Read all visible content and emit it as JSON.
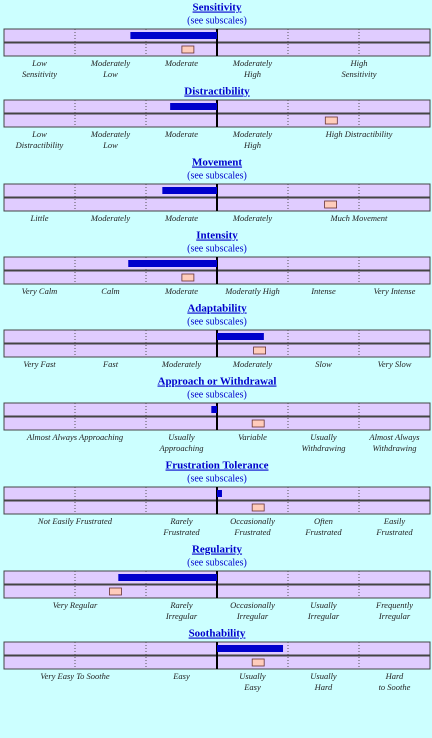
{
  "sections": [
    {
      "title": "Sensitivity",
      "subscales_link": "(see subscales)",
      "score": -1.22,
      "marker": -0.41,
      "labels": [
        [
          "Low",
          "Sensitivity"
        ],
        [
          "Moderately",
          "Low"
        ],
        [
          "Moderate"
        ],
        [
          "Moderately",
          "High"
        ],
        [
          "High",
          "Sensitivity"
        ],
        null
      ]
    },
    {
      "title": "Distractibility",
      "score": -0.66,
      "marker": 1.61,
      "labels": [
        [
          "Low",
          "Distractibility"
        ],
        [
          "Moderately",
          "Low"
        ],
        [
          "Moderate"
        ],
        [
          "Moderately",
          "High"
        ],
        [
          "High Distractibility"
        ],
        null
      ]
    },
    {
      "title": "Movement",
      "subscales_link": "(see subscales)",
      "score": -0.77,
      "marker": 1.6,
      "labels": [
        [
          "Little"
        ],
        [
          "Moderately"
        ],
        [
          "Moderate"
        ],
        [
          "Moderately"
        ],
        [
          "Much Movement"
        ],
        null
      ]
    },
    {
      "title": "Intensity",
      "subscales_link": "(see subscales)",
      "score": -1.25,
      "marker": -0.41,
      "labels": [
        [
          "Very Calm"
        ],
        [
          "Calm"
        ],
        [
          "Moderate"
        ],
        [
          "Moderatly High"
        ],
        [
          "Intense"
        ],
        [
          "Very Intense"
        ]
      ]
    },
    {
      "title": "Adaptability",
      "subscales_link": "(see subscales)",
      "score": 0.66,
      "marker": 0.6,
      "labels": [
        [
          "Very Fast"
        ],
        [
          "Fast"
        ],
        [
          "Moderately"
        ],
        [
          "Moderately"
        ],
        [
          "Slow"
        ],
        [
          "Very Slow"
        ]
      ]
    },
    {
      "title": "Approach or Withdrawal",
      "subscales_link": "(see subscales)",
      "score": -0.08,
      "marker": 0.58,
      "labels": [
        [
          "Almost Always Approaching"
        ],
        null,
        [
          "Usually",
          "Approaching"
        ],
        [
          "Variable"
        ],
        [
          "Usually",
          "Withdrawing"
        ],
        [
          "Almost Always",
          "Withdrawing"
        ]
      ]
    },
    {
      "title": "Frustration Tolerance",
      "subscales_link": "(see subscales)",
      "score": 0.07,
      "marker": 0.58,
      "labels": [
        [
          "Not Easily Frustrated"
        ],
        null,
        [
          "Rarely",
          "Frustrated"
        ],
        [
          "Occasionally",
          "Frustrated"
        ],
        [
          "Often",
          "Frustrated"
        ],
        [
          "Easily",
          "Frustrated"
        ]
      ]
    },
    {
      "title": "Regularity",
      "subscales_link": "(see subscales)",
      "score": -1.39,
      "marker": -1.43,
      "labels": [
        [
          "Very Regular"
        ],
        null,
        [
          "Rarely",
          "Irregular"
        ],
        [
          "Occasionally",
          "Irregular"
        ],
        [
          "Usually",
          "Irregular"
        ],
        [
          "Frequently",
          "Irregular"
        ]
      ]
    },
    {
      "title": "Soothability",
      "score": 0.93,
      "marker": 0.58,
      "labels": [
        [
          "Very Easy To Soothe"
        ],
        null,
        [
          "Easy"
        ],
        [
          "Usually",
          "Easy"
        ],
        [
          "Usually",
          "Hard"
        ],
        [
          "Hard",
          "to Soothe"
        ]
      ]
    }
  ]
}
